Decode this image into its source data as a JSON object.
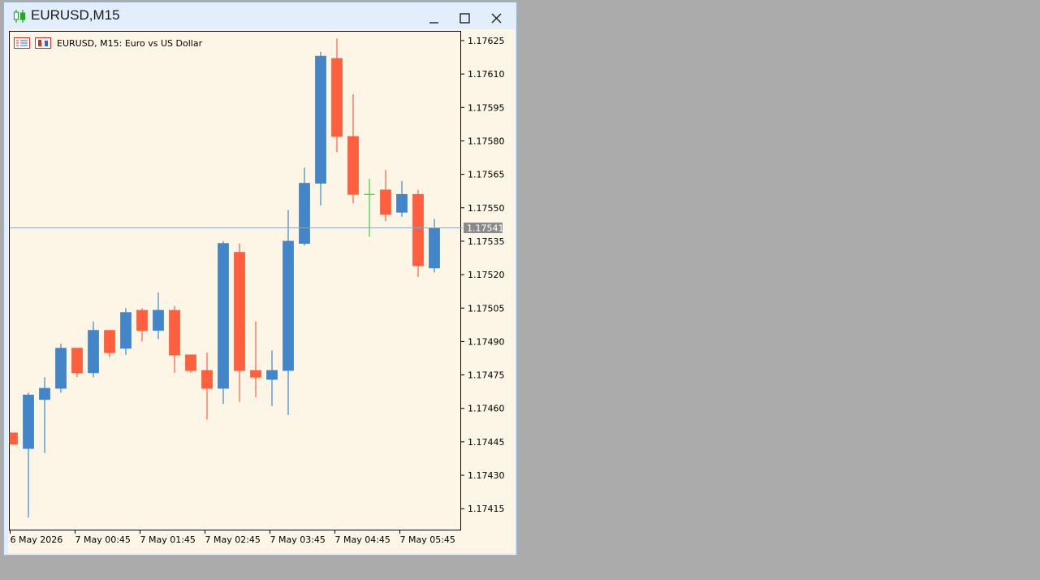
{
  "window": {
    "title": "EURUSD,M15",
    "app_icon": "candlestick-icon",
    "controls": [
      "minimize-icon",
      "maximize-icon",
      "close-icon"
    ]
  },
  "chart_header": {
    "text": "EURUSD, M15:  Euro vs US Dollar",
    "icons": [
      "indicator-list-icon",
      "chart-properties-icon"
    ]
  },
  "colors": {
    "background": "#fdf5e5",
    "bull": "#4285c8",
    "bear": "#fe5f3f",
    "doji": "#33dd33",
    "price_line": "#8fa6bd",
    "price_label_bg": "#8a8a8a"
  },
  "chart_data": {
    "type": "candlestick",
    "symbol": "EURUSD",
    "timeframe": "M15",
    "y_ticks": [
      "1.17625",
      "1.17610",
      "1.17595",
      "1.17580",
      "1.17565",
      "1.17550",
      "1.17535",
      "1.17520",
      "1.17505",
      "1.17490",
      "1.17475",
      "1.17460",
      "1.17445",
      "1.17430",
      "1.17415"
    ],
    "x_ticks": [
      "6 May 2026",
      "7 May 00:45",
      "7 May 01:45",
      "7 May 02:45",
      "7 May 03:45",
      "7 May 04:45",
      "7 May 05:45"
    ],
    "ylim": [
      1.174056,
      1.17629
    ],
    "current_price": "1.17541",
    "candles": [
      {
        "o": 1.17449,
        "h": 1.17449,
        "l": 1.17444,
        "c": 1.17444
      },
      {
        "o": 1.17442,
        "h": 1.17467,
        "l": 1.17411,
        "c": 1.17466
      },
      {
        "o": 1.17464,
        "h": 1.17474,
        "l": 1.1744,
        "c": 1.17469
      },
      {
        "o": 1.17469,
        "h": 1.17489,
        "l": 1.17467,
        "c": 1.17487
      },
      {
        "o": 1.17487,
        "h": 1.17487,
        "l": 1.17474,
        "c": 1.17476
      },
      {
        "o": 1.17476,
        "h": 1.17499,
        "l": 1.17474,
        "c": 1.17495
      },
      {
        "o": 1.17495,
        "h": 1.17495,
        "l": 1.17483,
        "c": 1.17485
      },
      {
        "o": 1.17487,
        "h": 1.17505,
        "l": 1.17484,
        "c": 1.17503
      },
      {
        "o": 1.17504,
        "h": 1.17505,
        "l": 1.1749,
        "c": 1.17495
      },
      {
        "o": 1.17495,
        "h": 1.17512,
        "l": 1.17491,
        "c": 1.17504
      },
      {
        "o": 1.17504,
        "h": 1.17506,
        "l": 1.17476,
        "c": 1.17484
      },
      {
        "o": 1.17484,
        "h": 1.17484,
        "l": 1.17476,
        "c": 1.17477
      },
      {
        "o": 1.17477,
        "h": 1.17485,
        "l": 1.17455,
        "c": 1.17469
      },
      {
        "o": 1.17469,
        "h": 1.17535,
        "l": 1.17462,
        "c": 1.17534
      },
      {
        "o": 1.1753,
        "h": 1.17534,
        "l": 1.17463,
        "c": 1.17477
      },
      {
        "o": 1.17477,
        "h": 1.17499,
        "l": 1.17465,
        "c": 1.17474
      },
      {
        "o": 1.17473,
        "h": 1.17486,
        "l": 1.17461,
        "c": 1.17477
      },
      {
        "o": 1.17477,
        "h": 1.17549,
        "l": 1.17457,
        "c": 1.17535
      },
      {
        "o": 1.17534,
        "h": 1.17568,
        "l": 1.17533,
        "c": 1.17561
      },
      {
        "o": 1.17561,
        "h": 1.1762,
        "l": 1.17551,
        "c": 1.17618
      },
      {
        "o": 1.17617,
        "h": 1.17626,
        "l": 1.17575,
        "c": 1.17582
      },
      {
        "o": 1.17582,
        "h": 1.17601,
        "l": 1.17552,
        "c": 1.17556
      },
      {
        "o": 1.17556,
        "h": 1.17563,
        "l": 1.17537,
        "c": 1.17556
      },
      {
        "o": 1.17558,
        "h": 1.17567,
        "l": 1.17544,
        "c": 1.17547
      },
      {
        "o": 1.17548,
        "h": 1.17562,
        "l": 1.17546,
        "c": 1.17556
      },
      {
        "o": 1.17556,
        "h": 1.17558,
        "l": 1.17519,
        "c": 1.17524
      },
      {
        "o": 1.17523,
        "h": 1.17545,
        "l": 1.17521,
        "c": 1.17541
      }
    ]
  }
}
